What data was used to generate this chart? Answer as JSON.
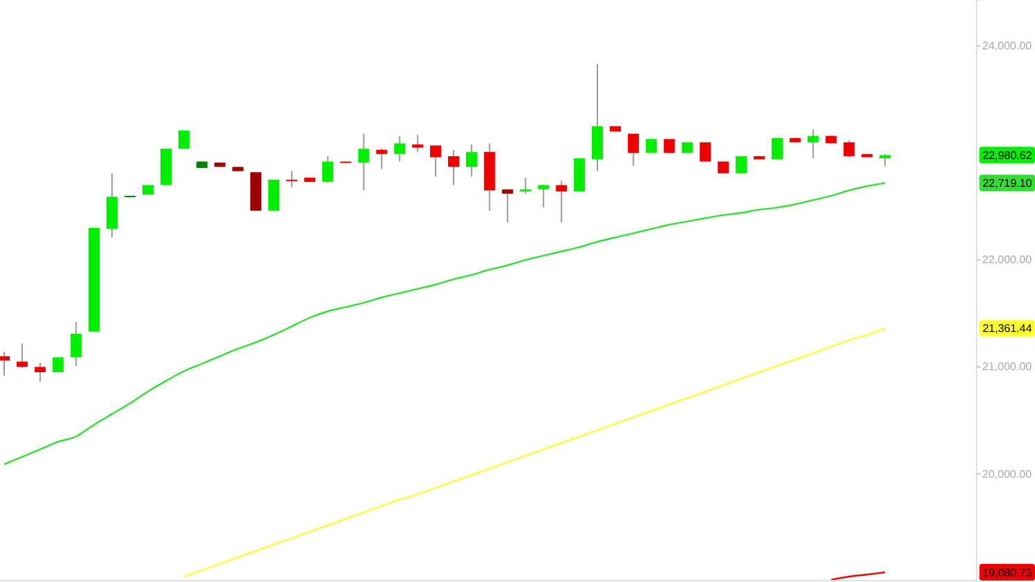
{
  "chart_data": {
    "type": "candlestick",
    "tick_labels": "y",
    "categories": [
      null,
      null,
      null,
      null,
      null,
      null,
      null,
      null,
      null,
      null,
      null,
      null,
      null,
      null,
      null,
      null,
      null,
      null,
      null,
      null,
      null,
      null,
      null,
      null,
      null,
      null,
      null,
      null,
      null,
      null,
      null,
      null,
      null,
      null,
      null,
      null,
      null,
      null,
      null,
      null,
      null,
      null,
      null,
      null,
      null,
      null,
      null,
      null,
      null,
      null
    ],
    "ohlc": [
      [
        21100,
        21140,
        20920,
        21060
      ],
      [
        21050,
        21220,
        20990,
        21000
      ],
      [
        21000,
        21040,
        20860,
        20950
      ],
      [
        20950,
        21090,
        20950,
        21090
      ],
      [
        21090,
        21420,
        21010,
        21310
      ],
      [
        21330,
        22300,
        21330,
        22300
      ],
      [
        22290,
        22810,
        22210,
        22590
      ],
      [
        22590,
        22600,
        22590,
        22600
      ],
      [
        22610,
        22700,
        22610,
        22700
      ],
      [
        22700,
        23040,
        22700,
        23040
      ],
      [
        23040,
        23210,
        23040,
        23210
      ],
      [
        22860,
        22920,
        22860,
        22920
      ],
      [
        22910,
        22910,
        22870,
        22870
      ],
      [
        22870,
        22870,
        22830,
        22830
      ],
      [
        22820,
        22820,
        22460,
        22460
      ],
      [
        22460,
        22750,
        22460,
        22750
      ],
      [
        22750,
        22830,
        22680,
        22740
      ],
      [
        22770,
        22770,
        22730,
        22730
      ],
      [
        22730,
        22970,
        22720,
        22920
      ],
      [
        22920,
        22920,
        22910,
        22910
      ],
      [
        22910,
        23180,
        22650,
        23040
      ],
      [
        23030,
        23040,
        22850,
        22990
      ],
      [
        22990,
        23160,
        22920,
        23090
      ],
      [
        23080,
        23170,
        23010,
        23050
      ],
      [
        23070,
        23070,
        22780,
        22960
      ],
      [
        22970,
        23030,
        22700,
        22870
      ],
      [
        22870,
        23080,
        22780,
        23010
      ],
      [
        23010,
        23090,
        22460,
        22650
      ],
      [
        22660,
        22660,
        22350,
        22620
      ],
      [
        22640,
        22770,
        22620,
        22660
      ],
      [
        22660,
        22700,
        22490,
        22700
      ],
      [
        22700,
        22740,
        22350,
        22640
      ],
      [
        22640,
        22950,
        22640,
        22950
      ],
      [
        22940,
        23830,
        22830,
        23250
      ],
      [
        23250,
        23250,
        23200,
        23200
      ],
      [
        23180,
        23180,
        22880,
        23000
      ],
      [
        23000,
        23130,
        23000,
        23130
      ],
      [
        23130,
        23130,
        23000,
        23000
      ],
      [
        23000,
        23100,
        23000,
        23100
      ],
      [
        23100,
        23100,
        22920,
        22920
      ],
      [
        22920,
        22920,
        22810,
        22810
      ],
      [
        22810,
        22970,
        22810,
        22970
      ],
      [
        22970,
        22970,
        22940,
        22940
      ],
      [
        22940,
        23140,
        22940,
        23140
      ],
      [
        23140,
        23140,
        23100,
        23100
      ],
      [
        23100,
        23220,
        22950,
        23160
      ],
      [
        23160,
        23160,
        23090,
        23090
      ],
      [
        23100,
        23120,
        22960,
        22970
      ],
      [
        22990,
        22990,
        22960,
        22960
      ],
      [
        22950,
        22990,
        22880,
        22980.62
      ]
    ],
    "colors": [
      "#ee0000",
      "#ee0000",
      "#ee0000",
      "#00ee00",
      "#00ee00",
      "#00ee00",
      "#00ee00",
      "#007f00",
      "#00ee00",
      "#00ee00",
      "#00ee00",
      "#007f00",
      "#a00000",
      "#a00000",
      "#a00000",
      "#00ee00",
      "#ee0000",
      "#ee0000",
      "#00ee00",
      "#ee0000",
      "#00ee00",
      "#ee0000",
      "#00ee00",
      "#ee0000",
      "#ee0000",
      "#ee0000",
      "#00ee00",
      "#ee0000",
      "#a00000",
      "#00ee00",
      "#00ee00",
      "#ee0000",
      "#00ee00",
      "#00ee00",
      "#ee0000",
      "#ee0000",
      "#00ee00",
      "#ee0000",
      "#00ee00",
      "#ee0000",
      "#ee0000",
      "#00ee00",
      "#ee0000",
      "#00ee00",
      "#ee0000",
      "#00ee00",
      "#ee0000",
      "#ee0000",
      "#ee0000",
      "#00ee00"
    ],
    "value_labels": [
      null,
      null,
      null,
      null,
      null,
      null,
      null,
      null,
      null,
      null,
      null,
      null,
      null,
      null,
      null,
      null,
      null,
      null,
      null,
      null,
      null,
      null,
      null,
      null,
      null,
      null,
      null,
      null,
      null,
      null,
      null,
      null,
      null,
      null,
      null,
      null,
      null,
      null,
      null,
      null,
      null,
      null,
      null,
      null,
      null,
      null,
      null,
      null,
      null,
      "22,980.62"
    ],
    "series": [
      {
        "type": "line",
        "color": "#33dd33",
        "values": [
          20090,
          20160,
          20230,
          20300,
          20350,
          20460,
          20560,
          20660,
          20770,
          20870,
          20960,
          21030,
          21100,
          21170,
          21230,
          21300,
          21380,
          21460,
          21520,
          21560,
          21600,
          21650,
          21690,
          21730,
          21770,
          21820,
          21860,
          21910,
          21950,
          22000,
          22040,
          22080,
          22120,
          22170,
          22210,
          22250,
          22290,
          22330,
          22360,
          22390,
          22420,
          22440,
          22470,
          22490,
          22520,
          22560,
          22600,
          22650,
          22690,
          22719.1
        ]
      },
      {
        "type": "line",
        "color": "#ffff33",
        "values": [
          null,
          null,
          null,
          null,
          null,
          null,
          null,
          null,
          null,
          null,
          19040,
          19100,
          19160,
          19220,
          19280,
          19340,
          19400,
          19460,
          19520,
          19580,
          19640,
          19700,
          19760,
          19810,
          19870,
          19930,
          19990,
          20050,
          20110,
          20170,
          20230,
          20290,
          20350,
          20410,
          20470,
          20530,
          20590,
          20650,
          20710,
          20770,
          20830,
          20890,
          20950,
          21010,
          21070,
          21130,
          21190,
          21250,
          21300,
          21361.44
        ]
      },
      {
        "type": "line",
        "color": "#ee0000",
        "values": [
          null,
          null,
          null,
          null,
          null,
          null,
          null,
          null,
          null,
          null,
          null,
          null,
          null,
          null,
          null,
          null,
          null,
          null,
          null,
          null,
          null,
          null,
          null,
          null,
          null,
          null,
          null,
          null,
          null,
          null,
          null,
          null,
          null,
          null,
          null,
          null,
          null,
          null,
          null,
          null,
          null,
          null,
          null,
          null,
          null,
          null,
          19010,
          19040,
          19060,
          19080.73
        ]
      }
    ],
    "annotations": [
      "22,719.10",
      "21,361.44",
      "19,080.73"
    ],
    "ylim": [
      18990,
      24430
    ],
    "yticks": [
      {
        "value": 20000,
        "label": "20,000.00"
      },
      {
        "value": 21000,
        "label": "21,000.00"
      },
      {
        "value": 22000,
        "label": "22,000.00"
      },
      {
        "value": 24000,
        "label": "24,000.00"
      }
    ]
  }
}
